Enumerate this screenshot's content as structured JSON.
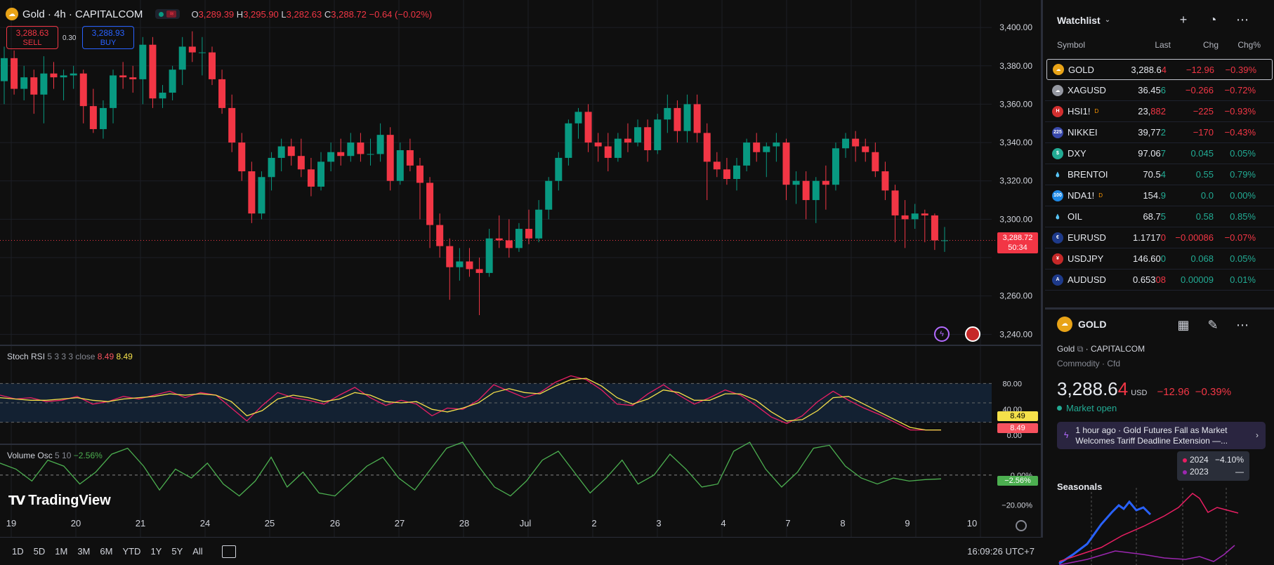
{
  "header": {
    "symbol_title": "Gold · 4h · CAPITALCOM",
    "ohlc": {
      "o_label": "O",
      "o": "3,289.39",
      "h_label": "H",
      "h": "3,295.90",
      "l_label": "L",
      "l": "3,282.63",
      "c_label": "C",
      "c": "3,288.72",
      "change": "−0.64 (−0.02%)"
    },
    "sell": {
      "price": "3,288.63",
      "label": "SELL"
    },
    "buy": {
      "price": "3,288.93",
      "label": "BUY"
    },
    "spread": "0.30"
  },
  "price_axis": {
    "ticks": [
      "3,400.00",
      "3,380.00",
      "3,360.00",
      "3,340.00",
      "3,320.00",
      "3,300.00",
      "3,260.00",
      "3,240.00"
    ],
    "last_price": "3,288.72",
    "countdown": "50:34"
  },
  "stoch": {
    "name": "Stoch RSI",
    "params": "5 3 3 3 close",
    "k": "8.49",
    "d": "8.49",
    "ticks": [
      "80.00",
      "40.00",
      "0.00"
    ],
    "tag_k": "8.49",
    "tag_d": "8.49"
  },
  "volosc": {
    "name": "Volume Osc",
    "params": "5 10",
    "value": "−2.56%",
    "ticks": [
      "0.00%",
      "−20.00%"
    ],
    "tag": "−2.56%"
  },
  "time_axis": [
    "19",
    "20",
    "21",
    "24",
    "25",
    "26",
    "27",
    "28",
    "Jul",
    "2",
    "3",
    "4",
    "7",
    "8",
    "9",
    "10"
  ],
  "branding": "TradingView",
  "bottom": {
    "timeframes": [
      "1D",
      "5D",
      "1M",
      "3M",
      "6M",
      "YTD",
      "1Y",
      "5Y",
      "All"
    ],
    "clock": "16:09:26 UTC+7"
  },
  "chart_data": {
    "type": "candlestick",
    "title": "Gold · 4h · CAPITALCOM",
    "ylim": [
      3235,
      3407
    ],
    "candles": [
      [
        3372,
        3390,
        3360,
        3384
      ],
      [
        3384,
        3388,
        3365,
        3368
      ],
      [
        3368,
        3380,
        3362,
        3374
      ],
      [
        3374,
        3378,
        3355,
        3365
      ],
      [
        3365,
        3385,
        3350,
        3376
      ],
      [
        3376,
        3382,
        3368,
        3374
      ],
      [
        3374,
        3378,
        3362,
        3375
      ],
      [
        3375,
        3380,
        3368,
        3376
      ],
      [
        3376,
        3378,
        3350,
        3359
      ],
      [
        3359,
        3368,
        3345,
        3347
      ],
      [
        3347,
        3362,
        3342,
        3358
      ],
      [
        3358,
        3378,
        3350,
        3375
      ],
      [
        3375,
        3382,
        3368,
        3374
      ],
      [
        3374,
        3380,
        3366,
        3373
      ],
      [
        3373,
        3395,
        3360,
        3391
      ],
      [
        3391,
        3395,
        3358,
        3363
      ],
      [
        3363,
        3370,
        3358,
        3366
      ],
      [
        3366,
        3380,
        3362,
        3378
      ],
      [
        3378,
        3395,
        3370,
        3390
      ],
      [
        3390,
        3398,
        3382,
        3387
      ],
      [
        3387,
        3395,
        3375,
        3387
      ],
      [
        3387,
        3390,
        3370,
        3373
      ],
      [
        3373,
        3378,
        3355,
        3358
      ],
      [
        3358,
        3365,
        3335,
        3340
      ],
      [
        3340,
        3345,
        3320,
        3325
      ],
      [
        3325,
        3330,
        3298,
        3303
      ],
      [
        3303,
        3325,
        3300,
        3322
      ],
      [
        3322,
        3335,
        3315,
        3332
      ],
      [
        3332,
        3342,
        3325,
        3338
      ],
      [
        3338,
        3342,
        3328,
        3333
      ],
      [
        3333,
        3342,
        3322,
        3326
      ],
      [
        3326,
        3332,
        3312,
        3317
      ],
      [
        3317,
        3335,
        3315,
        3330
      ],
      [
        3330,
        3340,
        3325,
        3335
      ],
      [
        3335,
        3342,
        3328,
        3333
      ],
      [
        3333,
        3345,
        3330,
        3340
      ],
      [
        3340,
        3345,
        3330,
        3334
      ],
      [
        3334,
        3342,
        3328,
        3334
      ],
      [
        3334,
        3350,
        3330,
        3344
      ],
      [
        3344,
        3348,
        3315,
        3320
      ],
      [
        3320,
        3340,
        3318,
        3336
      ],
      [
        3336,
        3342,
        3325,
        3328
      ],
      [
        3328,
        3332,
        3300,
        3319
      ],
      [
        3319,
        3322,
        3285,
        3297
      ],
      [
        3297,
        3303,
        3280,
        3286
      ],
      [
        3286,
        3290,
        3258,
        3275
      ],
      [
        3275,
        3285,
        3268,
        3278
      ],
      [
        3278,
        3285,
        3270,
        3274
      ],
      [
        3274,
        3280,
        3250,
        3272
      ],
      [
        3272,
        3295,
        3270,
        3290
      ],
      [
        3290,
        3302,
        3285,
        3289
      ],
      [
        3289,
        3300,
        3280,
        3285
      ],
      [
        3285,
        3298,
        3283,
        3295
      ],
      [
        3295,
        3305,
        3287,
        3290
      ],
      [
        3290,
        3310,
        3288,
        3305
      ],
      [
        3305,
        3322,
        3300,
        3320
      ],
      [
        3320,
        3335,
        3315,
        3332
      ],
      [
        3332,
        3352,
        3328,
        3350
      ],
      [
        3350,
        3358,
        3342,
        3356
      ],
      [
        3356,
        3360,
        3335,
        3340
      ],
      [
        3340,
        3345,
        3330,
        3338
      ],
      [
        3338,
        3345,
        3325,
        3332
      ],
      [
        3332,
        3345,
        3330,
        3342
      ],
      [
        3342,
        3350,
        3335,
        3340
      ],
      [
        3340,
        3352,
        3338,
        3348
      ],
      [
        3348,
        3352,
        3330,
        3336
      ],
      [
        3336,
        3355,
        3334,
        3352
      ],
      [
        3352,
        3365,
        3345,
        3358
      ],
      [
        3358,
        3362,
        3340,
        3346
      ],
      [
        3346,
        3365,
        3340,
        3360
      ],
      [
        3360,
        3365,
        3340,
        3345
      ],
      [
        3345,
        3350,
        3310,
        3330
      ],
      [
        3330,
        3335,
        3322,
        3326
      ],
      [
        3326,
        3332,
        3318,
        3321
      ],
      [
        3321,
        3332,
        3315,
        3328
      ],
      [
        3328,
        3342,
        3325,
        3340
      ],
      [
        3340,
        3345,
        3330,
        3335
      ],
      [
        3335,
        3340,
        3322,
        3338
      ],
      [
        3338,
        3345,
        3330,
        3340
      ],
      [
        3340,
        3342,
        3310,
        3318
      ],
      [
        3318,
        3325,
        3308,
        3320
      ],
      [
        3320,
        3325,
        3300,
        3310
      ],
      [
        3310,
        3322,
        3298,
        3320
      ],
      [
        3320,
        3328,
        3305,
        3318
      ],
      [
        3318,
        3340,
        3315,
        3337
      ],
      [
        3337,
        3345,
        3332,
        3342
      ],
      [
        3342,
        3346,
        3330,
        3338
      ],
      [
        3338,
        3342,
        3330,
        3335
      ],
      [
        3335,
        3340,
        3322,
        3325
      ],
      [
        3325,
        3330,
        3310,
        3315
      ],
      [
        3315,
        3318,
        3288,
        3302
      ],
      [
        3302,
        3310,
        3285,
        3300
      ],
      [
        3300,
        3308,
        3295,
        3303
      ],
      [
        3303,
        3305,
        3288,
        3302
      ],
      [
        3302,
        3303,
        3284,
        3289
      ],
      [
        3289,
        3296,
        3283,
        3289
      ]
    ],
    "stoch_k": [
      62,
      56,
      58,
      52,
      54,
      60,
      48,
      52,
      60,
      56,
      62,
      68,
      58,
      66,
      62,
      42,
      22,
      46,
      66,
      58,
      54,
      48,
      62,
      74,
      58,
      46,
      54,
      48,
      30,
      42,
      40,
      54,
      78,
      68,
      58,
      66,
      82,
      92,
      86,
      70,
      48,
      46,
      64,
      78,
      62,
      48,
      58,
      70,
      62,
      46,
      28,
      18,
      30,
      52,
      68,
      54,
      42,
      32,
      20,
      8,
      8,
      8
    ],
    "stoch_d": [
      58,
      56,
      54,
      54,
      56,
      58,
      54,
      52,
      56,
      58,
      60,
      64,
      62,
      64,
      62,
      52,
      30,
      38,
      56,
      62,
      58,
      52,
      56,
      66,
      62,
      52,
      50,
      52,
      40,
      36,
      42,
      50,
      66,
      72,
      66,
      64,
      76,
      86,
      88,
      76,
      58,
      48,
      56,
      70,
      66,
      54,
      54,
      64,
      64,
      54,
      36,
      22,
      24,
      38,
      58,
      60,
      48,
      36,
      24,
      12,
      8,
      8
    ],
    "vol_osc": [
      8,
      4,
      -4,
      10,
      6,
      -6,
      2,
      14,
      18,
      6,
      -10,
      4,
      -2,
      8,
      -6,
      -14,
      -4,
      12,
      -8,
      2,
      -12,
      -14,
      -4,
      6,
      12,
      -2,
      -10,
      4,
      18,
      22,
      6,
      -8,
      -14,
      -4,
      10,
      16,
      2,
      -12,
      -2,
      10,
      -6,
      0,
      14,
      4,
      -8,
      -6,
      16,
      22,
      4,
      -8,
      2,
      18,
      20,
      6,
      -2,
      -6,
      -2,
      -4,
      -3,
      -2.56
    ],
    "volosc_ylim": [
      -25,
      15
    ]
  },
  "watchlist": {
    "title": "Watchlist",
    "columns": [
      "Symbol",
      "Last",
      "Chg",
      "Chg%"
    ],
    "rows": [
      {
        "symbol": "GOLD",
        "last_main": "3,288.6",
        "last_tail": "4",
        "chg": "−12.96",
        "chgp": "−0.39%",
        "dir": "neg",
        "icon_color": "#e8a317",
        "icon_text": "☁",
        "tail_color": "#f23645"
      },
      {
        "symbol": "XAGUSD",
        "last_main": "36.45",
        "last_tail": "6",
        "chg": "−0.266",
        "chgp": "−0.72%",
        "dir": "neg",
        "icon_color": "#9598a1",
        "icon_text": "☁",
        "tail_color": "#22ab94"
      },
      {
        "symbol": "HSI1!",
        "sup": "D",
        "last_main": "23,",
        "last_tail": "882",
        "chg": "−225",
        "chgp": "−0.93%",
        "dir": "neg",
        "icon_color": "#d32f2f",
        "icon_text": "H",
        "tail_color": "#f23645"
      },
      {
        "symbol": "NIKKEI",
        "last_main": "39,77",
        "last_tail": "2",
        "chg": "−170",
        "chgp": "−0.43%",
        "dir": "neg",
        "icon_color": "#3949ab",
        "icon_text": "225",
        "tail_color": "#22ab94"
      },
      {
        "symbol": "DXY",
        "last_main": "97.06",
        "last_tail": "7",
        "chg": "0.045",
        "chgp": "0.05%",
        "dir": "pos",
        "icon_color": "#22ab94",
        "icon_text": "$",
        "tail_color": "#22ab94"
      },
      {
        "symbol": "BRENTOI",
        "last_main": "70.5",
        "last_tail": "4",
        "chg": "0.55",
        "chgp": "0.79%",
        "dir": "pos",
        "icon_color": "#0f0f0f",
        "icon_text": "💧",
        "tail_color": "#22ab94"
      },
      {
        "symbol": "NDA1!",
        "sup": "D",
        "last_main": "154.",
        "last_tail": "9",
        "chg": "0.0",
        "chgp": "0.00%",
        "dir": "pos",
        "icon_color": "#1e88e5",
        "icon_text": "100",
        "tail_color": "#22ab94"
      },
      {
        "symbol": "OIL",
        "last_main": "68.7",
        "last_tail": "5",
        "chg": "0.58",
        "chgp": "0.85%",
        "dir": "pos",
        "icon_color": "#0f0f0f",
        "icon_text": "💧",
        "tail_color": "#22ab94"
      },
      {
        "symbol": "EURUSD",
        "last_main": "1.1717",
        "last_tail": "0",
        "chg": "−0.00086",
        "chgp": "−0.07%",
        "dir": "neg",
        "icon_color": "#1e3a8a",
        "icon_text": "€",
        "tail_color": "#f23645"
      },
      {
        "symbol": "USDJPY",
        "last_main": "146.60",
        "last_tail": "0",
        "chg": "0.068",
        "chgp": "0.05%",
        "dir": "pos",
        "icon_color": "#c62828",
        "icon_text": "¥",
        "tail_color": "#22ab94"
      },
      {
        "symbol": "AUDUSD",
        "last_main": "0.653",
        "last_tail": "08",
        "chg": "0.00009",
        "chgp": "0.01%",
        "dir": "pos",
        "icon_color": "#1e3a8a",
        "icon_text": "A",
        "tail_color": "#f23645"
      }
    ]
  },
  "detail": {
    "symbol": "GOLD",
    "name": "Gold",
    "exchange": "CAPITALCOM",
    "category": "Commodity · Cfd",
    "price_main": "3,288.6",
    "price_tail": "4",
    "currency": "USD",
    "change": "−12.96",
    "change_pct": "−0.39%",
    "market_status": "Market open",
    "news_time": "1 hour ago",
    "news_text_1": "Gold Futures Fall as Market",
    "news_text_2": "Welcomes Tariff Deadline Extension —...",
    "seasonals": "Seasonals",
    "tooltip": [
      {
        "year": "2024",
        "value": "−4.10%",
        "color": "#e91e63"
      },
      {
        "year": "2023",
        "value": "—",
        "color": "#9c27b0"
      }
    ]
  },
  "colors": {
    "up": "#089981",
    "down": "#f23645",
    "accent": "#2962ff"
  }
}
